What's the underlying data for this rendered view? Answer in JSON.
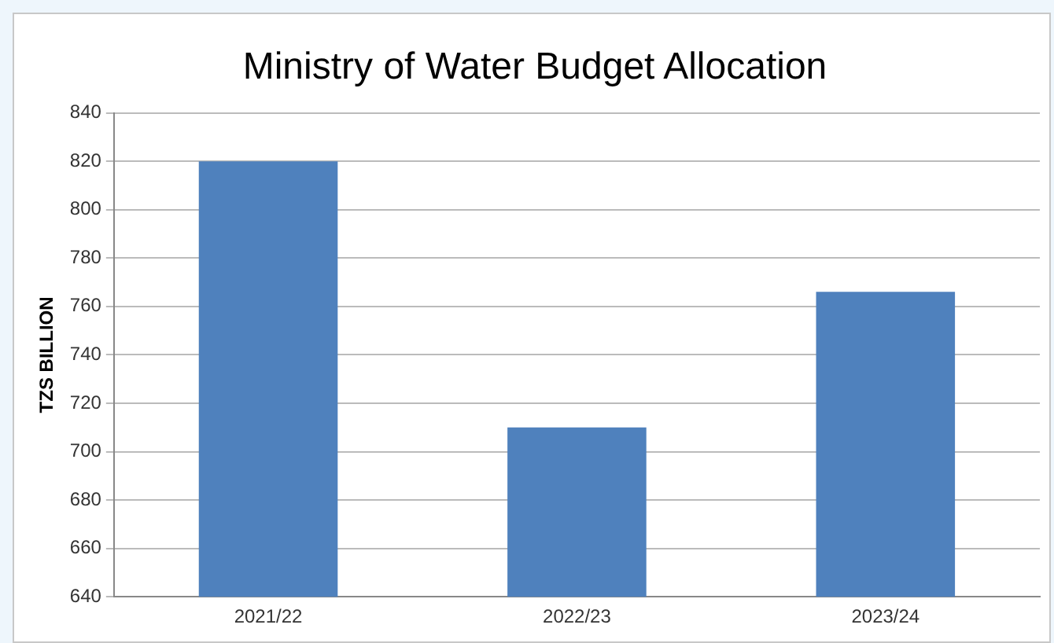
{
  "chart_data": {
    "type": "bar",
    "title": "Ministry of Water Budget Allocation",
    "ylabel": "TZS BILLION",
    "categories": [
      "2021/22",
      "2022/23",
      "2023/24"
    ],
    "values": [
      820,
      710,
      766
    ],
    "color": "#4f81bd",
    "ylim": [
      640,
      840
    ],
    "yticks": [
      640,
      660,
      680,
      700,
      720,
      740,
      760,
      780,
      800,
      820,
      840
    ],
    "grid": "y"
  }
}
